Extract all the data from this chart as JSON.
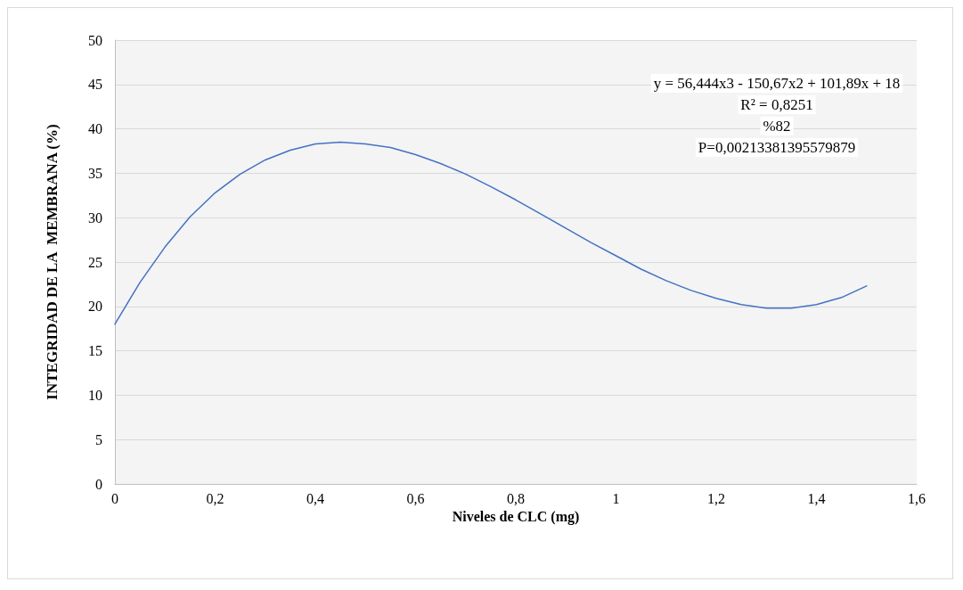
{
  "chart_data": {
    "type": "line",
    "xlabel": "Niveles de CLC (mg)",
    "ylabel": "INTEGRIDAD DE LA  MEMBRANA (%)",
    "x": [
      0,
      0.05,
      0.1,
      0.15,
      0.2,
      0.25,
      0.3,
      0.35,
      0.4,
      0.45,
      0.5,
      0.55,
      0.6,
      0.65,
      0.7,
      0.75,
      0.8,
      0.85,
      0.9,
      0.95,
      1.0,
      1.05,
      1.1,
      1.15,
      1.2,
      1.25,
      1.3,
      1.35,
      1.4,
      1.45,
      1.5
    ],
    "series": [
      {
        "color": "#4472c4",
        "values": [
          18,
          22.7,
          26.7,
          30.1,
          32.8,
          34.9,
          36.5,
          37.6,
          38.3,
          38.5,
          38.3,
          37.9,
          37.1,
          36.1,
          34.9,
          33.5,
          32.0,
          30.4,
          28.8,
          27.2,
          25.7,
          24.2,
          22.9,
          21.8,
          20.9,
          20.2,
          19.8,
          19.8,
          20.2,
          21.0,
          22.3
        ]
      }
    ],
    "xlim": [
      0,
      1.6
    ],
    "xticks": [
      0,
      {
        "value": 0.2,
        "label": "0,2"
      },
      {
        "value": 0.4,
        "label": "0,4"
      },
      {
        "value": 0.6,
        "label": "0,6"
      },
      {
        "value": 0.8,
        "label": "0,8"
      },
      1,
      {
        "value": 1.2,
        "label": "1,2"
      },
      {
        "value": 1.4,
        "label": "1,4"
      },
      {
        "value": 1.6,
        "label": "1,6"
      }
    ],
    "ylim": [
      0,
      50
    ],
    "yticks": [
      0,
      5,
      10,
      15,
      20,
      25,
      30,
      35,
      40,
      45,
      50
    ],
    "annotations": [
      "y = 56,444x3 - 150,67x2 + 101,89x + 18",
      "R² = 0,8251",
      "%82",
      "P=0,00213381395579879"
    ],
    "grid": "y",
    "marker": "none",
    "line_style": "solid"
  }
}
